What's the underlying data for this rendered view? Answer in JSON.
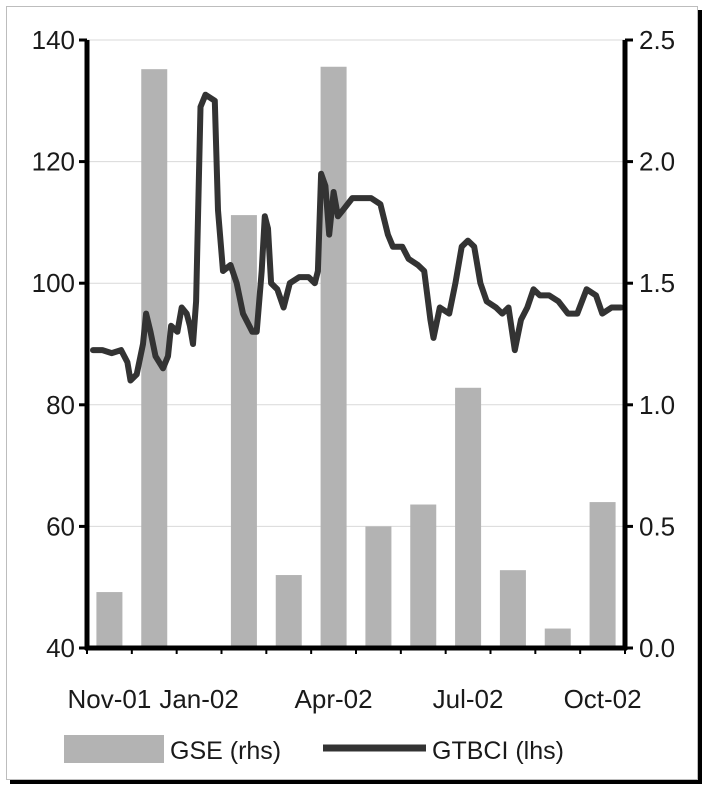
{
  "chart_data": {
    "type": "bar+line",
    "title": "",
    "x_tick_labels": [
      "Nov-01",
      "Jan-02",
      "Apr-02",
      "Jul-02",
      "Oct-02"
    ],
    "left_axis": {
      "ticks": [
        40,
        60,
        80,
        100,
        120,
        140
      ],
      "ylim": [
        40,
        140
      ]
    },
    "right_axis": {
      "ticks": [
        "0.0",
        "0.5",
        "1.0",
        "1.5",
        "2.0",
        "2.5"
      ],
      "ylim": [
        0,
        2.5
      ]
    },
    "grid": true,
    "legend_position": "bottom",
    "bar_series": {
      "name": "GSE (rhs)",
      "color": "#b3b3b3",
      "categories": [
        "Nov-01",
        "Dec-01",
        "Jan-02",
        "Feb-02",
        "Mar-02",
        "Apr-02",
        "May-02",
        "Jun-02",
        "Jul-02",
        "Aug-02",
        "Sep-02",
        "Oct-02"
      ],
      "values": [
        0.23,
        2.38,
        0,
        1.78,
        0.3,
        2.39,
        0.5,
        0.59,
        1.07,
        0.32,
        0.08,
        0.6
      ]
    },
    "line_series": {
      "name": "GTBCI (lhs)",
      "color": "#333333",
      "points": [
        [
          0.0,
          89
        ],
        [
          0.15,
          89
        ],
        [
          0.3,
          88.5
        ],
        [
          0.45,
          89
        ],
        [
          0.55,
          87
        ],
        [
          0.6,
          84
        ],
        [
          0.7,
          85
        ],
        [
          0.8,
          90
        ],
        [
          0.85,
          95
        ],
        [
          0.92,
          92
        ],
        [
          1.0,
          88
        ],
        [
          1.12,
          86
        ],
        [
          1.2,
          88
        ],
        [
          1.25,
          93
        ],
        [
          1.35,
          92
        ],
        [
          1.42,
          96
        ],
        [
          1.5,
          95
        ],
        [
          1.55,
          93
        ],
        [
          1.6,
          90
        ],
        [
          1.65,
          97
        ],
        [
          1.72,
          129
        ],
        [
          1.8,
          131
        ],
        [
          1.95,
          130
        ],
        [
          2.0,
          112
        ],
        [
          2.08,
          102
        ],
        [
          2.2,
          103
        ],
        [
          2.3,
          100
        ],
        [
          2.4,
          95
        ],
        [
          2.55,
          92
        ],
        [
          2.62,
          92
        ],
        [
          2.7,
          102
        ],
        [
          2.75,
          111
        ],
        [
          2.8,
          109
        ],
        [
          2.85,
          100
        ],
        [
          2.95,
          99
        ],
        [
          3.05,
          96
        ],
        [
          3.15,
          100
        ],
        [
          3.3,
          101
        ],
        [
          3.45,
          101
        ],
        [
          3.55,
          100
        ],
        [
          3.6,
          102
        ],
        [
          3.65,
          118
        ],
        [
          3.72,
          116
        ],
        [
          3.78,
          108
        ],
        [
          3.85,
          115
        ],
        [
          3.92,
          111
        ],
        [
          4.0,
          112
        ],
        [
          4.15,
          114
        ],
        [
          4.3,
          114
        ],
        [
          4.45,
          114
        ],
        [
          4.6,
          113
        ],
        [
          4.72,
          108
        ],
        [
          4.8,
          106
        ],
        [
          4.95,
          106
        ],
        [
          5.05,
          104
        ],
        [
          5.2,
          103
        ],
        [
          5.3,
          102
        ],
        [
          5.4,
          94
        ],
        [
          5.45,
          91
        ],
        [
          5.55,
          96
        ],
        [
          5.7,
          95
        ],
        [
          5.8,
          100
        ],
        [
          5.9,
          106
        ],
        [
          6.0,
          107
        ],
        [
          6.1,
          106
        ],
        [
          6.2,
          100
        ],
        [
          6.3,
          97
        ],
        [
          6.45,
          96
        ],
        [
          6.55,
          95
        ],
        [
          6.65,
          96
        ],
        [
          6.75,
          89
        ],
        [
          6.85,
          94
        ],
        [
          6.95,
          96
        ],
        [
          7.05,
          99
        ],
        [
          7.15,
          98
        ],
        [
          7.3,
          98
        ],
        [
          7.45,
          97
        ],
        [
          7.6,
          95
        ],
        [
          7.75,
          95
        ],
        [
          7.9,
          99
        ],
        [
          8.05,
          98
        ],
        [
          8.15,
          95
        ],
        [
          8.3,
          96
        ],
        [
          8.45,
          96
        ]
      ]
    }
  }
}
